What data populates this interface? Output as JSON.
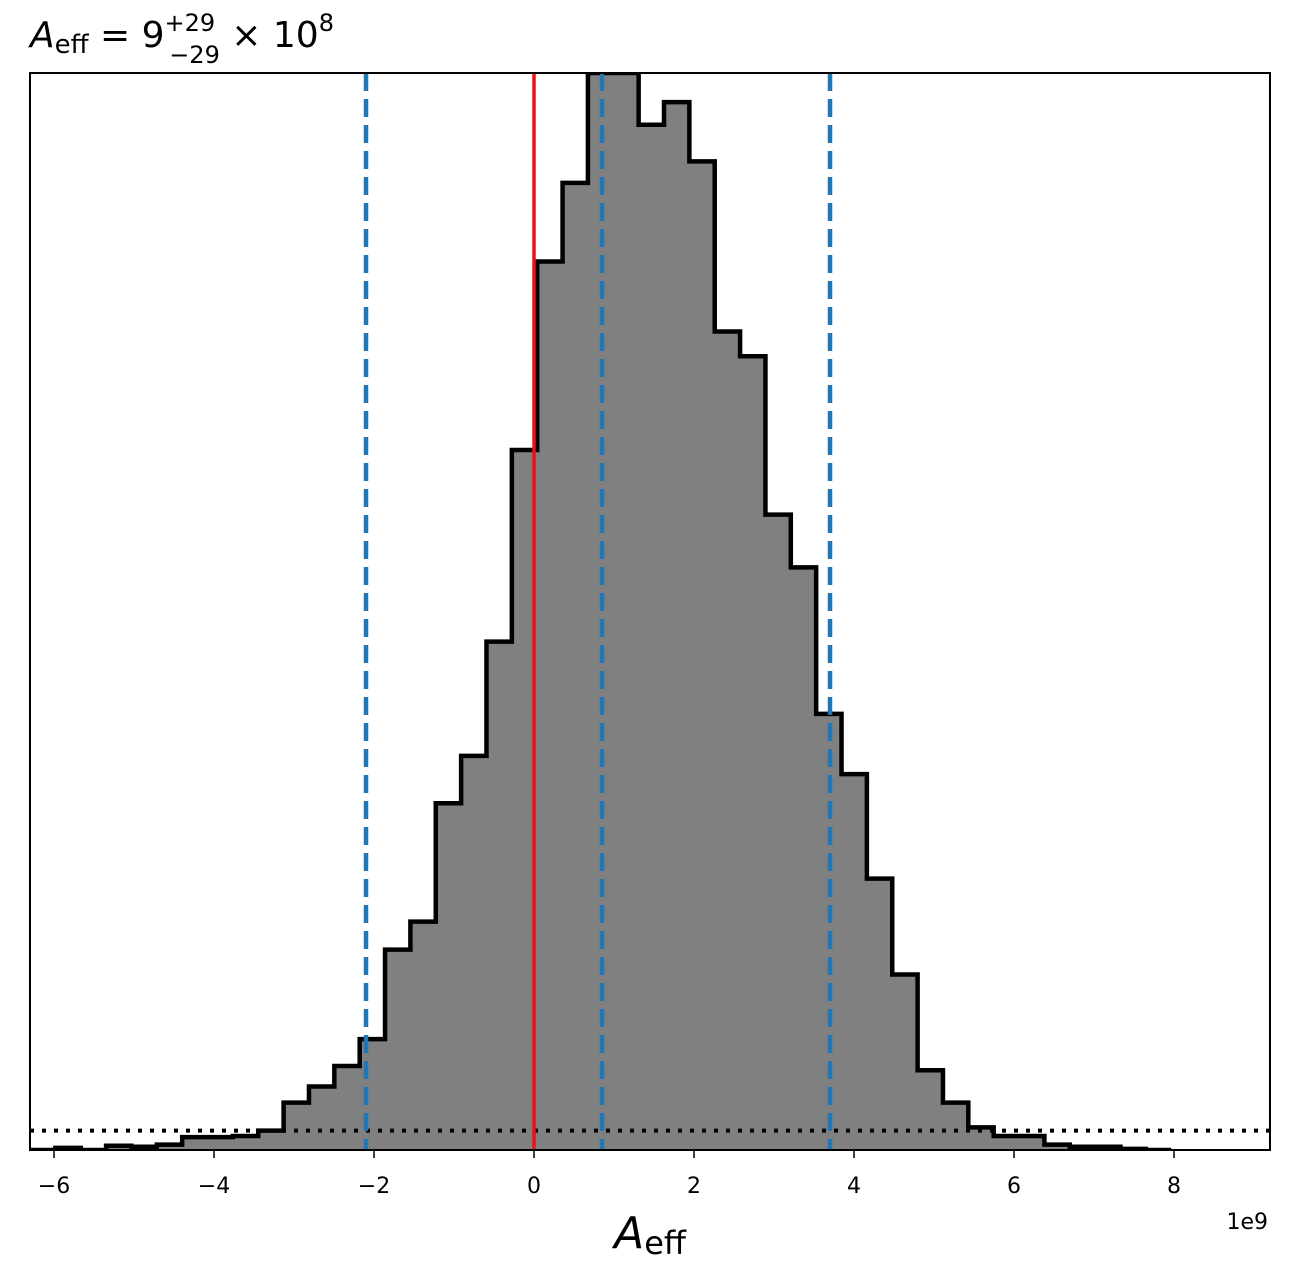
{
  "chart_data": {
    "type": "histogram",
    "title": {
      "symbol": "A",
      "symbol_sub": "eff",
      "equals": " = 9",
      "sup": "+29",
      "sub": "−29",
      "times": " × 10",
      "exp": "8"
    },
    "xlabel": {
      "symbol": "A",
      "sub": "eff"
    },
    "x_offset_label": "1e9",
    "x_scale": 1000000000.0,
    "xlim": [
      -6.3,
      9.2
    ],
    "ylim": [
      0,
      1.0
    ],
    "x_ticks": [
      -6,
      -4,
      -2,
      0,
      2,
      4,
      6,
      8
    ],
    "x_tick_labels": [
      "−6",
      "−4",
      "−2",
      "0",
      "2",
      "4",
      "6",
      "8"
    ],
    "y_ticks_visible": false,
    "bin_start": -6.3,
    "bin_width": 0.317,
    "bin_heights": [
      0.0,
      0.002,
      0.0,
      0.004,
      0.003,
      0.005,
      0.012,
      0.012,
      0.013,
      0.018,
      0.044,
      0.059,
      0.078,
      0.103,
      0.186,
      0.212,
      0.322,
      0.366,
      0.472,
      0.65,
      0.825,
      0.898,
      1.0,
      1.0,
      0.952,
      0.973,
      0.918,
      0.76,
      0.737,
      0.59,
      0.541,
      0.405,
      0.349,
      0.252,
      0.163,
      0.074,
      0.044,
      0.021,
      0.013,
      0.013,
      0.005,
      0.003,
      0.003,
      0.001,
      0.0
    ],
    "hist_fill": "#808080",
    "hist_edge": "#000000",
    "truth_value": 0.0,
    "truth_color": "#ee1111",
    "quantiles": [
      -2.1,
      0.85,
      3.7
    ],
    "quantile_color": "#1f77b4",
    "prior_level": 0.018,
    "prior_color": "#000000"
  }
}
